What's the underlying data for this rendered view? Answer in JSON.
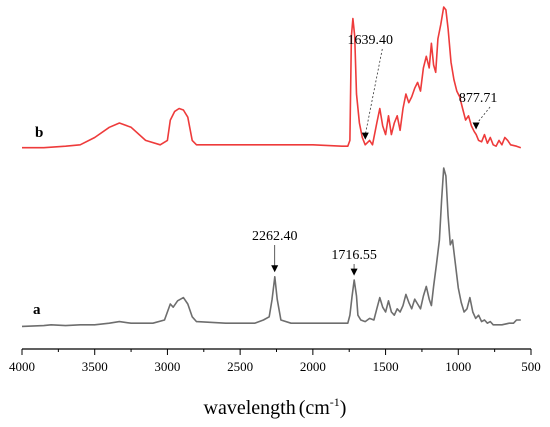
{
  "chart_data": {
    "type": "line",
    "xlabel": "wavelength",
    "xlabel_unit": "(cm",
    "xlabel_unit_sup": "-1",
    "xlabel_unit_close": ")",
    "xlim": [
      4000,
      500
    ],
    "x_reversed": true,
    "x_ticks": [
      4000,
      3500,
      3000,
      2500,
      2000,
      1500,
      1000,
      500
    ],
    "y_axis_shown": false,
    "grid": false,
    "colors": {
      "a": "#6e6e6e",
      "b": "#ee3b3b"
    },
    "series": [
      {
        "name": "b",
        "color": "#ee3b3b",
        "points": [
          [
            4000,
            0.03
          ],
          [
            3850,
            0.03
          ],
          [
            3700,
            0.04
          ],
          [
            3600,
            0.05
          ],
          [
            3500,
            0.1
          ],
          [
            3400,
            0.17
          ],
          [
            3330,
            0.2
          ],
          [
            3250,
            0.17
          ],
          [
            3150,
            0.08
          ],
          [
            3050,
            0.05
          ],
          [
            3000,
            0.08
          ],
          [
            2980,
            0.22
          ],
          [
            2950,
            0.28
          ],
          [
            2920,
            0.3
          ],
          [
            2890,
            0.29
          ],
          [
            2860,
            0.24
          ],
          [
            2830,
            0.08
          ],
          [
            2800,
            0.05
          ],
          [
            2500,
            0.05
          ],
          [
            2200,
            0.05
          ],
          [
            2000,
            0.05
          ],
          [
            1800,
            0.04
          ],
          [
            1760,
            0.04
          ],
          [
            1745,
            0.08
          ],
          [
            1735,
            0.8
          ],
          [
            1725,
            0.92
          ],
          [
            1712,
            0.8
          ],
          [
            1700,
            0.4
          ],
          [
            1680,
            0.2
          ],
          [
            1660,
            0.1
          ],
          [
            1640,
            0.05
          ],
          [
            1610,
            0.08
          ],
          [
            1590,
            0.05
          ],
          [
            1560,
            0.2
          ],
          [
            1540,
            0.3
          ],
          [
            1520,
            0.18
          ],
          [
            1500,
            0.12
          ],
          [
            1480,
            0.25
          ],
          [
            1460,
            0.12
          ],
          [
            1440,
            0.2
          ],
          [
            1420,
            0.25
          ],
          [
            1400,
            0.15
          ],
          [
            1380,
            0.3
          ],
          [
            1360,
            0.4
          ],
          [
            1340,
            0.34
          ],
          [
            1320,
            0.38
          ],
          [
            1300,
            0.44
          ],
          [
            1280,
            0.48
          ],
          [
            1260,
            0.42
          ],
          [
            1240,
            0.58
          ],
          [
            1220,
            0.66
          ],
          [
            1200,
            0.58
          ],
          [
            1185,
            0.75
          ],
          [
            1170,
            0.6
          ],
          [
            1155,
            0.55
          ],
          [
            1140,
            0.78
          ],
          [
            1120,
            0.88
          ],
          [
            1100,
            1.0
          ],
          [
            1085,
            0.98
          ],
          [
            1070,
            0.85
          ],
          [
            1050,
            0.62
          ],
          [
            1030,
            0.5
          ],
          [
            1010,
            0.42
          ],
          [
            990,
            0.38
          ],
          [
            970,
            0.3
          ],
          [
            950,
            0.22
          ],
          [
            930,
            0.25
          ],
          [
            910,
            0.18
          ],
          [
            890,
            0.14
          ],
          [
            877,
            0.12
          ],
          [
            860,
            0.08
          ],
          [
            840,
            0.07
          ],
          [
            820,
            0.12
          ],
          [
            800,
            0.06
          ],
          [
            780,
            0.1
          ],
          [
            760,
            0.05
          ],
          [
            740,
            0.04
          ],
          [
            720,
            0.08
          ],
          [
            700,
            0.05
          ],
          [
            680,
            0.1
          ],
          [
            660,
            0.08
          ],
          [
            640,
            0.05
          ],
          [
            600,
            0.04
          ],
          [
            570,
            0.03
          ]
        ]
      },
      {
        "name": "a",
        "color": "#6e6e6e",
        "points": [
          [
            4000,
            0.01
          ],
          [
            3850,
            0.015
          ],
          [
            3800,
            0.02
          ],
          [
            3700,
            0.015
          ],
          [
            3600,
            0.02
          ],
          [
            3500,
            0.02
          ],
          [
            3400,
            0.03
          ],
          [
            3330,
            0.04
          ],
          [
            3250,
            0.03
          ],
          [
            3100,
            0.03
          ],
          [
            3020,
            0.05
          ],
          [
            3000,
            0.1
          ],
          [
            2980,
            0.15
          ],
          [
            2960,
            0.13
          ],
          [
            2930,
            0.17
          ],
          [
            2890,
            0.19
          ],
          [
            2860,
            0.15
          ],
          [
            2830,
            0.07
          ],
          [
            2800,
            0.04
          ],
          [
            2600,
            0.03
          ],
          [
            2500,
            0.03
          ],
          [
            2400,
            0.03
          ],
          [
            2340,
            0.05
          ],
          [
            2300,
            0.07
          ],
          [
            2280,
            0.18
          ],
          [
            2262,
            0.32
          ],
          [
            2245,
            0.18
          ],
          [
            2220,
            0.05
          ],
          [
            2150,
            0.03
          ],
          [
            2000,
            0.03
          ],
          [
            1800,
            0.03
          ],
          [
            1760,
            0.03
          ],
          [
            1745,
            0.08
          ],
          [
            1730,
            0.2
          ],
          [
            1716,
            0.3
          ],
          [
            1700,
            0.2
          ],
          [
            1690,
            0.08
          ],
          [
            1670,
            0.05
          ],
          [
            1640,
            0.04
          ],
          [
            1610,
            0.06
          ],
          [
            1580,
            0.05
          ],
          [
            1560,
            0.12
          ],
          [
            1540,
            0.19
          ],
          [
            1520,
            0.13
          ],
          [
            1500,
            0.1
          ],
          [
            1480,
            0.17
          ],
          [
            1460,
            0.1
          ],
          [
            1440,
            0.08
          ],
          [
            1420,
            0.12
          ],
          [
            1400,
            0.1
          ],
          [
            1380,
            0.14
          ],
          [
            1360,
            0.21
          ],
          [
            1340,
            0.16
          ],
          [
            1320,
            0.12
          ],
          [
            1300,
            0.18
          ],
          [
            1280,
            0.15
          ],
          [
            1260,
            0.12
          ],
          [
            1240,
            0.2
          ],
          [
            1220,
            0.26
          ],
          [
            1200,
            0.18
          ],
          [
            1185,
            0.14
          ],
          [
            1170,
            0.26
          ],
          [
            1150,
            0.4
          ],
          [
            1130,
            0.55
          ],
          [
            1115,
            0.8
          ],
          [
            1100,
            1.0
          ],
          [
            1085,
            0.95
          ],
          [
            1070,
            0.7
          ],
          [
            1055,
            0.52
          ],
          [
            1040,
            0.55
          ],
          [
            1020,
            0.4
          ],
          [
            1000,
            0.25
          ],
          [
            980,
            0.16
          ],
          [
            960,
            0.1
          ],
          [
            940,
            0.12
          ],
          [
            920,
            0.19
          ],
          [
            900,
            0.1
          ],
          [
            880,
            0.06
          ],
          [
            860,
            0.08
          ],
          [
            840,
            0.04
          ],
          [
            820,
            0.05
          ],
          [
            800,
            0.03
          ],
          [
            780,
            0.04
          ],
          [
            760,
            0.02
          ],
          [
            700,
            0.02
          ],
          [
            650,
            0.03
          ],
          [
            620,
            0.03
          ],
          [
            600,
            0.05
          ],
          [
            570,
            0.05
          ]
        ]
      }
    ],
    "annotations": [
      {
        "series": "b",
        "label": "1639.40",
        "x": 1639.4
      },
      {
        "series": "b",
        "label": "877.71",
        "x": 877.71
      },
      {
        "series": "a",
        "label": "2262.40",
        "x": 2262.4
      },
      {
        "series": "a",
        "label": "1716.55",
        "x": 1716.55
      }
    ]
  }
}
